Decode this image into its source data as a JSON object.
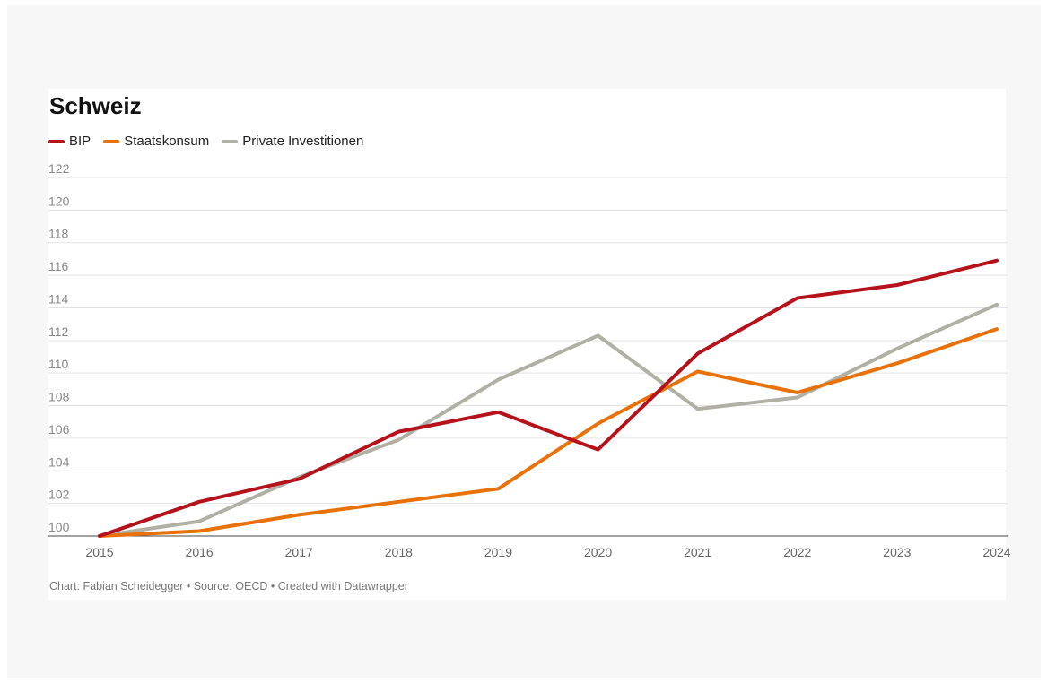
{
  "chart_data": {
    "type": "line",
    "title": "Schweiz",
    "x": [
      "2015",
      "2016",
      "2017",
      "2018",
      "2019",
      "2020",
      "2021",
      "2022",
      "2023",
      "2024"
    ],
    "series": [
      {
        "name": "BIP",
        "color": "#b5121b",
        "values": [
          100,
          102.1,
          103.5,
          106.4,
          107.6,
          105.3,
          111.2,
          114.6,
          115.4,
          116.9
        ]
      },
      {
        "name": "Staatskonsum",
        "color": "#e8710a",
        "values": [
          100,
          100.3,
          101.3,
          102.1,
          102.9,
          106.9,
          110.1,
          108.8,
          110.6,
          112.7
        ]
      },
      {
        "name": "Private Investitionen",
        "color": "#b0b0a4",
        "values": [
          100,
          100.9,
          103.6,
          105.9,
          109.6,
          112.3,
          107.8,
          108.5,
          111.5,
          114.2
        ]
      }
    ],
    "ylim": [
      100,
      122
    ],
    "yticks": [
      "100",
      "102",
      "104",
      "106",
      "108",
      "110",
      "112",
      "114",
      "116",
      "118",
      "120",
      "122"
    ],
    "grid": true,
    "legend_position": "top-left"
  },
  "footer": "Chart: Fabian Scheidegger • Source: OECD • Created with Datawrapper"
}
